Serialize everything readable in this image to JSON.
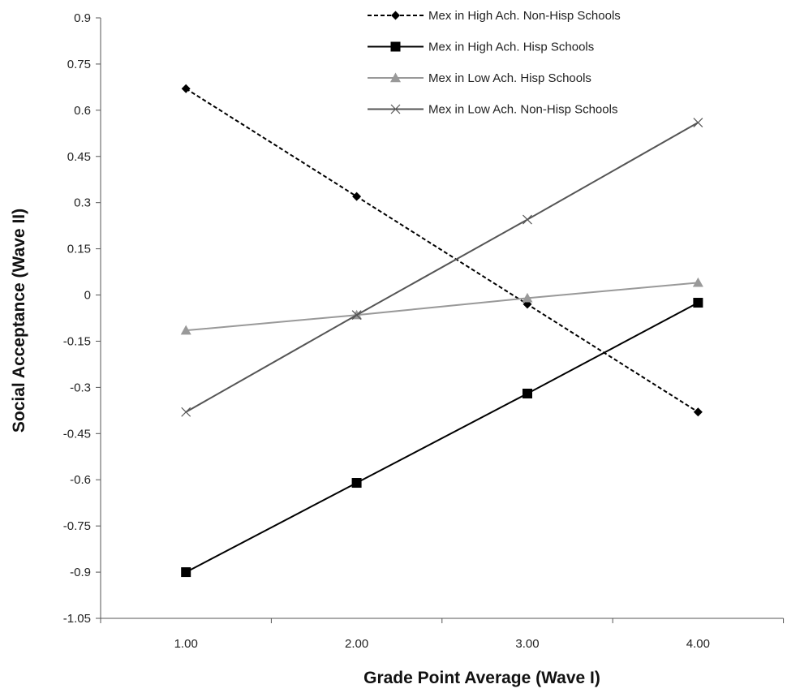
{
  "chart_data": {
    "type": "line",
    "xlabel": "Grade Point Average (Wave I)",
    "ylabel": "Social Acceptance (Wave II)",
    "x": [
      1.0,
      2.0,
      3.0,
      4.0
    ],
    "x_tick_labels": [
      "1.00",
      "2.00",
      "3.00",
      "4.00"
    ],
    "xlim": [
      0.5,
      4.5
    ],
    "ylim": [
      -1.05,
      0.9
    ],
    "y_ticks": [
      0.9,
      0.75,
      0.6,
      0.45,
      0.3,
      0.15,
      0,
      -0.15,
      -0.3,
      -0.45,
      -0.6,
      -0.75,
      -0.9,
      -1.05
    ],
    "y_tick_labels": [
      "0.9",
      "0.75",
      "0.6",
      "0.45",
      "0.3",
      "0.15",
      "0",
      "-0.15",
      "-0.3",
      "-0.45",
      "-0.6",
      "-0.75",
      "-0.9",
      "-1.05"
    ],
    "grid": false,
    "legend_position": "top-right",
    "series": [
      {
        "name": "Mex in High Ach. Non-Hisp Schools",
        "values": [
          0.67,
          0.32,
          -0.03,
          -0.38
        ],
        "color": "#000000",
        "marker": "diamond",
        "dash": "dashed"
      },
      {
        "name": "Mex in High Ach. Hisp Schools",
        "values": [
          -0.9,
          -0.61,
          -0.32,
          -0.025
        ],
        "color": "#000000",
        "marker": "square",
        "dash": "solid"
      },
      {
        "name": "Mex in Low Ach. Hisp Schools",
        "values": [
          -0.115,
          -0.065,
          -0.01,
          0.04
        ],
        "color": "#999999",
        "marker": "triangle",
        "dash": "solid"
      },
      {
        "name": "Mex in Low Ach. Non-Hisp Schools",
        "values": [
          -0.38,
          -0.065,
          0.245,
          0.56
        ],
        "color": "#555555",
        "marker": "x",
        "dash": "solid"
      }
    ]
  }
}
